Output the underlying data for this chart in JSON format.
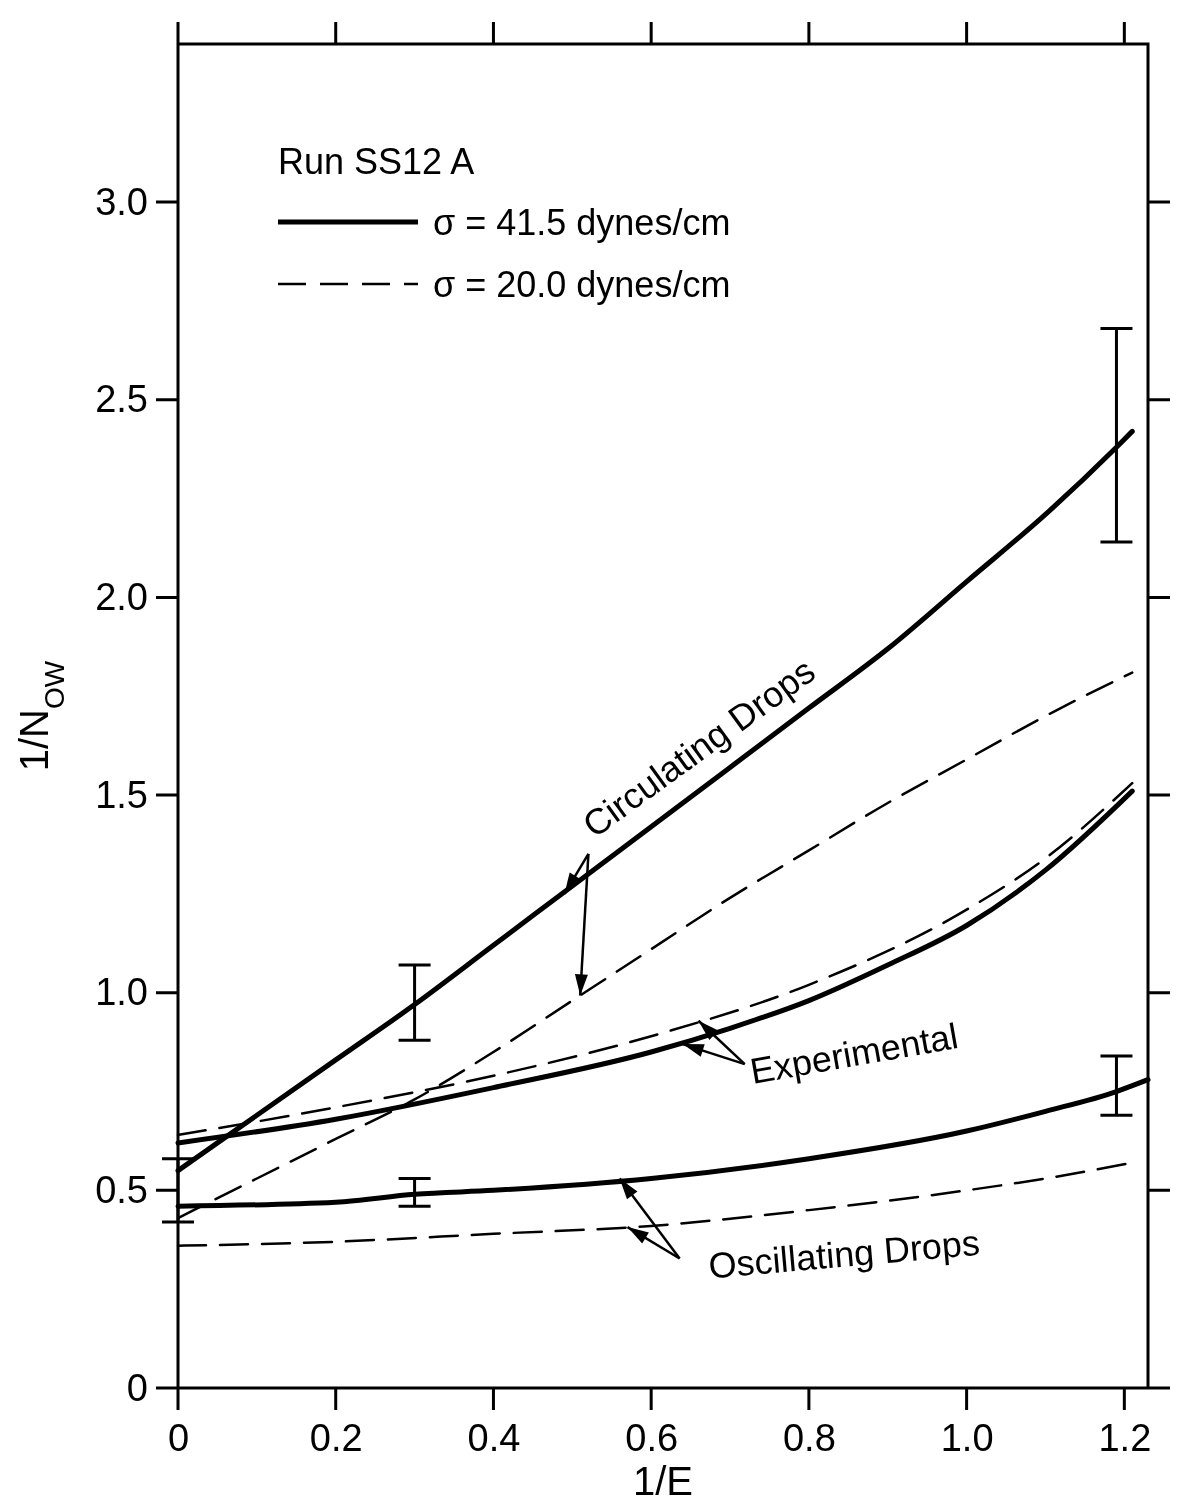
{
  "chart_data": {
    "type": "line",
    "xlabel": "1/E",
    "ylabel": "1/N$_{OW}$",
    "xlim": [
      0,
      1.23
    ],
    "ylim": [
      0,
      3.4
    ],
    "xticks": [
      0,
      0.2,
      0.4,
      0.6,
      0.8,
      {
        "value": 1,
        "label": "1.0"
      },
      1.2
    ],
    "yticks": [
      0,
      0.5,
      {
        "value": 1,
        "label": "1.0"
      },
      1.5,
      {
        "value": 2,
        "label": "2.0"
      },
      2.5,
      {
        "value": 3,
        "label": "3.0"
      }
    ],
    "legend": "top left",
    "line_style": "solid",
    "series": [
      {
        "name": "σ = 41.5 dynes/cm",
        "color": "#000000",
        "x": [
          0,
          0.1,
          0.2,
          0.3,
          0.4,
          0.5,
          0.6,
          0.7,
          0.8,
          0.9,
          1.0,
          1.1,
          1.19,
          1.21
        ],
        "values": [
          0.55,
          0.69,
          0.83,
          0.97,
          1.12,
          1.27,
          1.42,
          1.57,
          1.72,
          1.87,
          2.04,
          2.21,
          2.38,
          2.42
        ],
        "errors": [
          [
            0.42,
            0.58
          ],
          null,
          null,
          [
            0.88,
            1.07
          ],
          null,
          null,
          null,
          null,
          null,
          null,
          null,
          null,
          [
            2.14,
            2.68
          ],
          null
        ]
      },
      {
        "name": "σ = 20.0 dynes/cm",
        "color": "#000000",
        "line_style": "dashed",
        "x": [
          0,
          0.1,
          0.2,
          0.3,
          0.4,
          0.5,
          0.6,
          0.7,
          0.8,
          0.9,
          1.0,
          1.1,
          1.21
        ],
        "values": [
          0.43,
          0.53,
          0.63,
          0.73,
          0.85,
          0.98,
          1.11,
          1.24,
          1.36,
          1.48,
          1.59,
          1.7,
          1.81
        ]
      },
      {
        "color": "#000000",
        "x": [
          0,
          0.2,
          0.4,
          0.6,
          0.7,
          0.8,
          0.9,
          1.0,
          1.1,
          1.21
        ],
        "values": [
          0.62,
          0.68,
          0.76,
          0.85,
          0.91,
          0.98,
          1.07,
          1.17,
          1.31,
          1.51
        ]
      },
      {
        "color": "#000000",
        "line_style": "dashed",
        "x": [
          0,
          0.2,
          0.4,
          0.6,
          0.8,
          1.0,
          1.1,
          1.21
        ],
        "values": [
          0.64,
          0.71,
          0.79,
          0.89,
          1.02,
          1.21,
          1.34,
          1.53
        ]
      },
      {
        "color": "#000000",
        "x": [
          0,
          0.2,
          0.3,
          0.4,
          0.6,
          0.8,
          1.0,
          1.1,
          1.19,
          1.23
        ],
        "values": [
          0.46,
          0.47,
          0.49,
          0.5,
          0.53,
          0.58,
          0.65,
          0.7,
          0.75,
          0.78
        ],
        "errors": [
          null,
          null,
          [
            0.46,
            0.53
          ],
          null,
          null,
          null,
          null,
          null,
          [
            0.69,
            0.84
          ],
          null
        ]
      },
      {
        "color": "#000000",
        "line_style": "dashed",
        "x": [
          0,
          0.2,
          0.4,
          0.6,
          0.8,
          1.0,
          1.1,
          1.21
        ],
        "values": [
          0.36,
          0.37,
          0.39,
          0.41,
          0.45,
          0.5,
          0.53,
          0.57
        ]
      }
    ],
    "annotations": [
      "Run SS12 A",
      {
        "text": "Circulating Drops",
        "x": 0.49,
        "y": 1.25
      },
      {
        "text": "Experimental",
        "x": 0.64,
        "y": 0.87
      },
      {
        "text": "Oscillating Drops",
        "x": 0.56,
        "y": 0.53
      }
    ]
  }
}
